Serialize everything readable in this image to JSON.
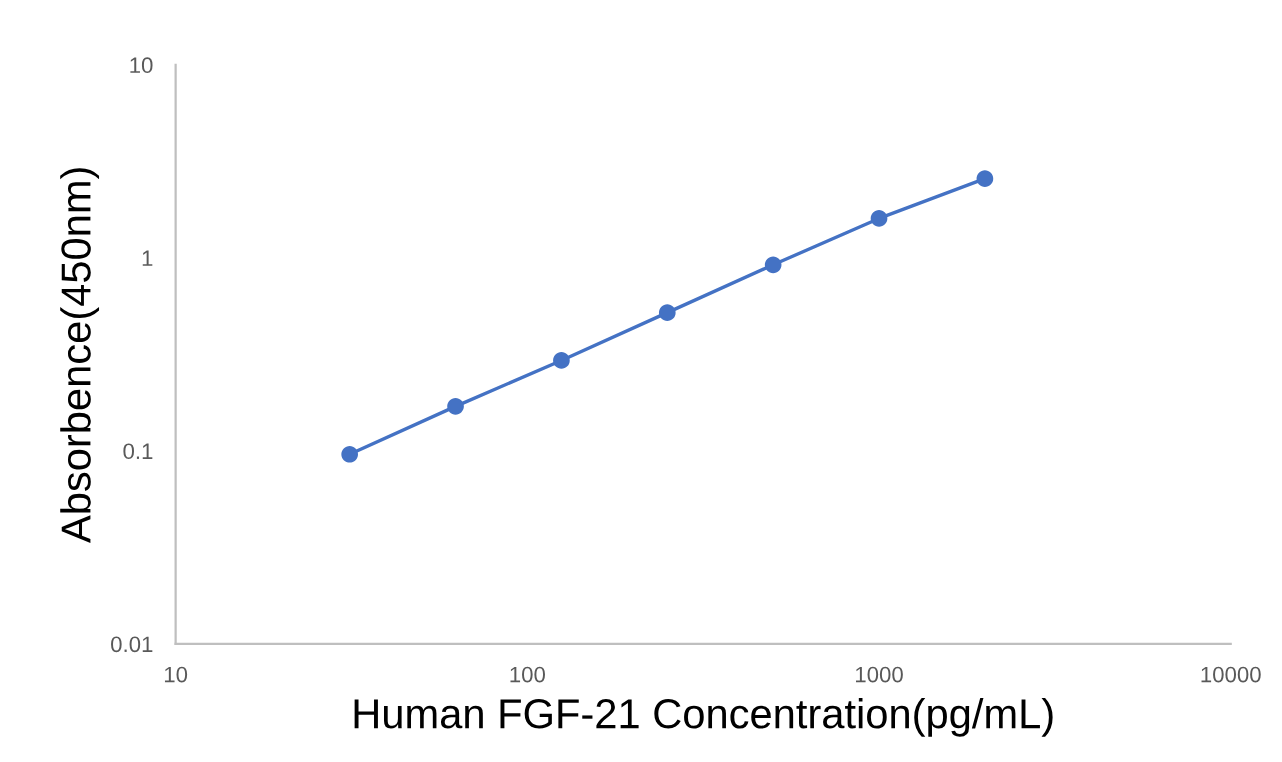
{
  "chart_data": {
    "type": "line",
    "xlabel": "Human FGF-21 Concentration(pg/mL)",
    "ylabel": "Absorbence(450nm)",
    "x": [
      31.25,
      62.5,
      125,
      250,
      500,
      1000,
      2000
    ],
    "series": [
      {
        "color": "#4472c4",
        "values": [
          0.096,
          0.17,
          0.294,
          0.52,
          0.92,
          1.6,
          2.57
        ]
      }
    ],
    "log": "xy",
    "xlim": [
      10,
      10000
    ],
    "ylim": [
      0.01,
      10
    ],
    "xticks": [
      10,
      100,
      1000,
      10000
    ],
    "yticks": [
      0.01,
      0.1,
      1,
      10
    ],
    "marker": "circle",
    "line_style": "solid",
    "grid": false,
    "legend": false
  }
}
